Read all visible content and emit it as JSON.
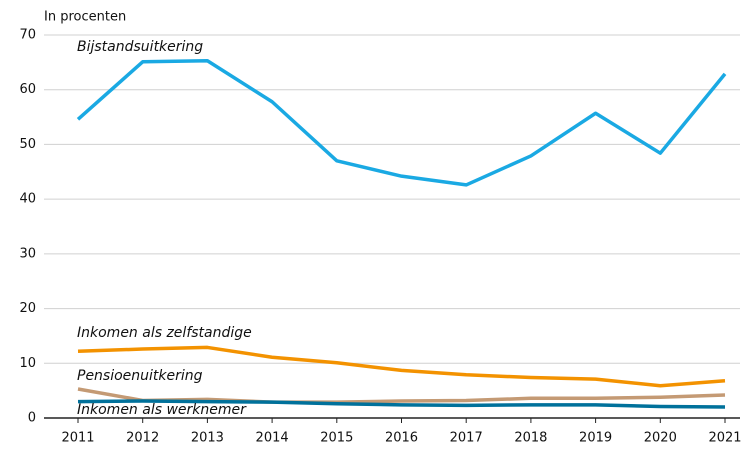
{
  "chart_data": {
    "type": "line",
    "y_axis_title": "In procenten",
    "x": [
      "2011",
      "2012",
      "2013",
      "2014",
      "2015",
      "2016",
      "2017",
      "2018",
      "2019",
      "2020",
      "2021"
    ],
    "series": [
      {
        "name": "Bijstandsuitkering",
        "color": "#1aa9e3",
        "values": [
          54.6,
          65.1,
          65.3,
          57.8,
          47.0,
          44.2,
          42.6,
          47.9,
          55.7,
          48.4,
          62.9
        ]
      },
      {
        "name": "Inkomen als zelfstandige",
        "color": "#f39200",
        "values": [
          12.2,
          12.6,
          12.9,
          11.1,
          10.1,
          8.7,
          7.9,
          7.4,
          7.1,
          5.9,
          6.8
        ]
      },
      {
        "name": "Pensioenuitkering",
        "color": "#c49a74",
        "values": [
          5.3,
          3.2,
          3.4,
          2.9,
          2.9,
          3.1,
          3.2,
          3.6,
          3.6,
          3.8,
          4.2
        ]
      },
      {
        "name": "Inkomen als werknemer",
        "color": "#00719b",
        "values": [
          3.0,
          3.1,
          3.0,
          2.9,
          2.6,
          2.4,
          2.3,
          2.4,
          2.4,
          2.1,
          2.0
        ]
      }
    ],
    "ylim": [
      0,
      70
    ],
    "yticks": [
      0,
      10,
      20,
      30,
      40,
      50,
      60,
      70
    ],
    "grid": true
  }
}
